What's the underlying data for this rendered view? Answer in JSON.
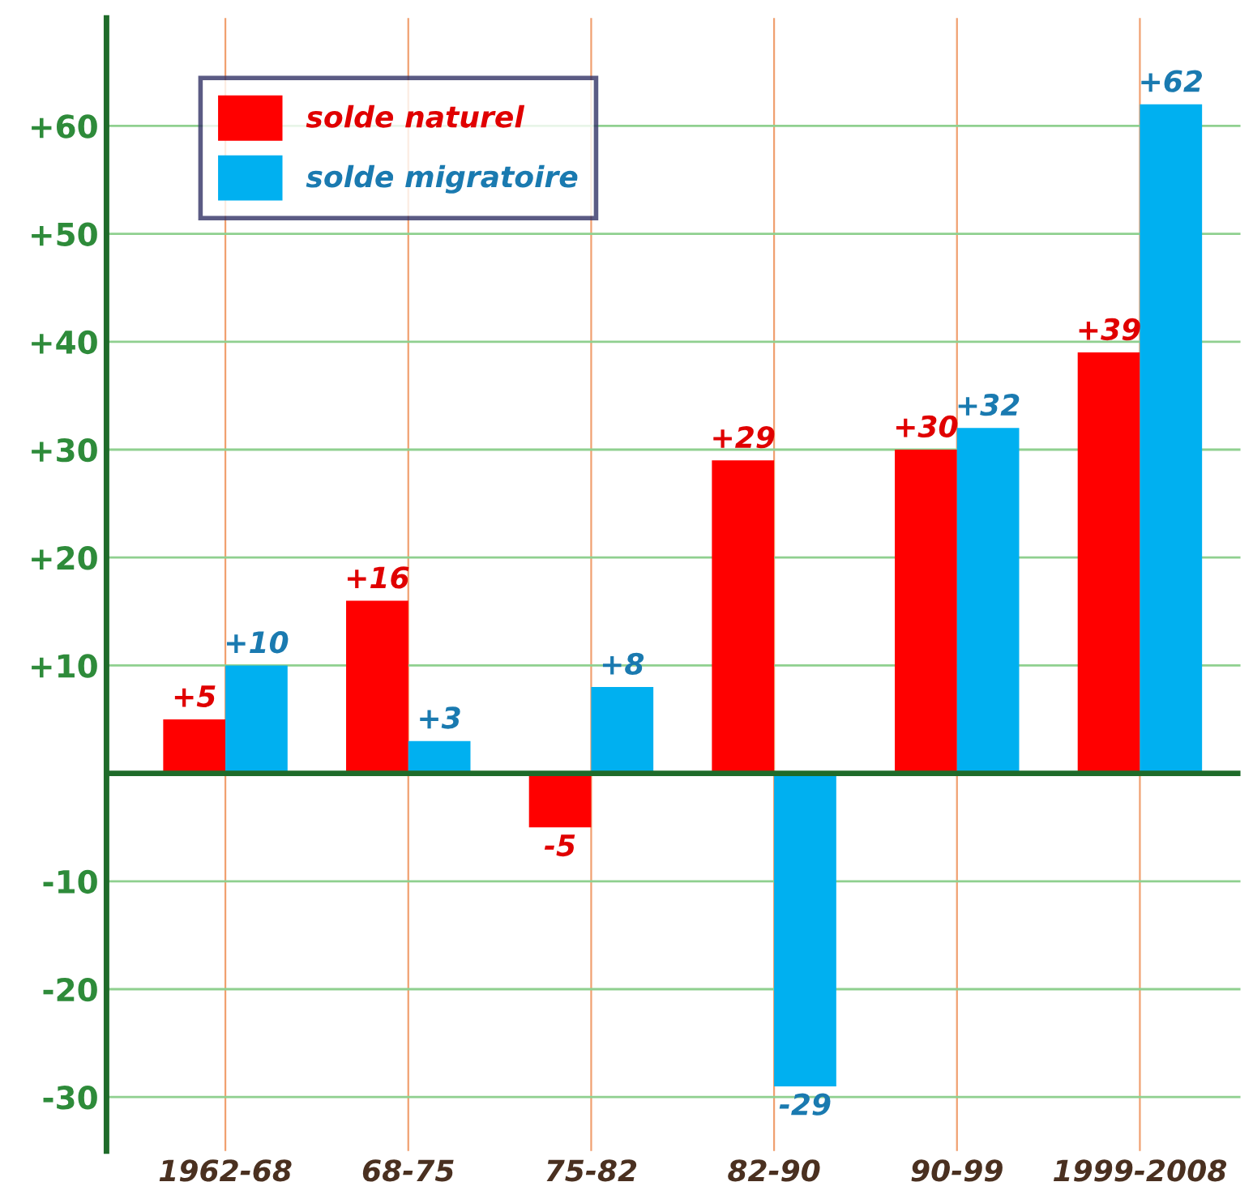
{
  "chart_data": {
    "type": "bar",
    "categories": [
      "1962-68",
      "68-75",
      "75-82",
      "82-90",
      "90-99",
      "1999-2008"
    ],
    "series": [
      {
        "name": "solde naturel",
        "color": "#ff0000",
        "values": [
          5,
          16,
          -5,
          29,
          30,
          39
        ],
        "value_labels": [
          "+5",
          "+16",
          "-5",
          "+29",
          "+30",
          "+39"
        ]
      },
      {
        "name": "solde migratoire",
        "color": "#00b0f0",
        "values": [
          10,
          3,
          8,
          -29,
          32,
          62
        ],
        "value_labels": [
          "+10",
          "+3",
          "+8",
          "-29",
          "+32",
          "+62"
        ]
      }
    ],
    "ylim": [
      -35,
      70
    ],
    "yticks": [
      -30,
      -20,
      -10,
      {
        "value": 10,
        "label": "+10"
      },
      {
        "value": 20,
        "label": "+20"
      },
      {
        "value": 30,
        "label": "+30"
      },
      {
        "value": 40,
        "label": "+40"
      },
      {
        "value": 50,
        "label": "+50"
      },
      {
        "value": 60,
        "label": "+60"
      }
    ],
    "grid": true,
    "ref_lines": [
      {
        "axis": "y",
        "value": 0,
        "color": "#1f6b2a"
      }
    ],
    "legend": "top left"
  }
}
